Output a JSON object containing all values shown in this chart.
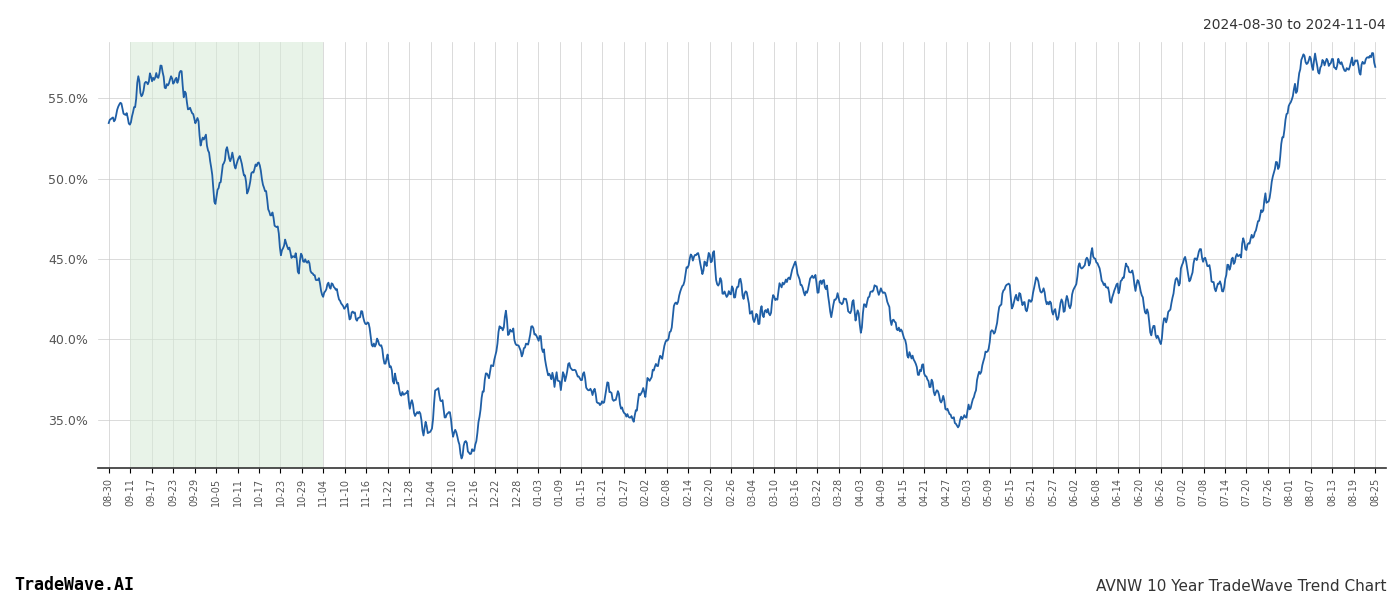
{
  "title_right": "2024-08-30 to 2024-11-04",
  "footer_left": "TradeWave.AI",
  "footer_right": "AVNW 10 Year TradeWave Trend Chart",
  "line_color": "#1f5fa6",
  "line_width": 1.3,
  "highlight_color": "#d6ead6",
  "highlight_alpha": 0.55,
  "highlight_xstart": 1,
  "highlight_xend": 10,
  "ylim": [
    32.0,
    58.5
  ],
  "yticks": [
    35.0,
    40.0,
    45.0,
    50.0,
    55.0
  ],
  "background_color": "#ffffff",
  "grid_color": "#cccccc",
  "x_labels": [
    "08-30",
    "09-11",
    "09-17",
    "09-23",
    "09-29",
    "10-05",
    "10-11",
    "10-17",
    "10-23",
    "10-29",
    "11-04",
    "11-10",
    "11-16",
    "11-22",
    "11-28",
    "12-04",
    "12-10",
    "12-16",
    "12-22",
    "12-28",
    "01-03",
    "01-09",
    "01-15",
    "01-21",
    "01-27",
    "02-02",
    "02-08",
    "02-14",
    "02-20",
    "02-26",
    "03-04",
    "03-10",
    "03-16",
    "03-22",
    "03-28",
    "04-03",
    "04-09",
    "04-15",
    "04-21",
    "04-27",
    "05-03",
    "05-09",
    "05-15",
    "05-21",
    "05-27",
    "06-02",
    "06-08",
    "06-14",
    "06-20",
    "06-26",
    "07-02",
    "07-08",
    "07-14",
    "07-20",
    "07-26",
    "08-01",
    "08-07",
    "08-13",
    "08-19",
    "08-25"
  ],
  "key_points": [
    [
      0,
      53.5
    ],
    [
      0.008,
      54.8
    ],
    [
      0.016,
      53.2
    ],
    [
      0.022,
      55.5
    ],
    [
      0.028,
      56.2
    ],
    [
      0.033,
      56.0
    ],
    [
      0.04,
      56.5
    ],
    [
      0.046,
      55.5
    ],
    [
      0.05,
      56.3
    ],
    [
      0.055,
      56.5
    ],
    [
      0.06,
      55.5
    ],
    [
      0.065,
      54.0
    ],
    [
      0.07,
      53.5
    ],
    [
      0.073,
      51.8
    ],
    [
      0.076,
      53.0
    ],
    [
      0.08,
      51.5
    ],
    [
      0.084,
      48.5
    ],
    [
      0.087,
      49.5
    ],
    [
      0.09,
      49.8
    ],
    [
      0.093,
      51.5
    ],
    [
      0.096,
      51.2
    ],
    [
      0.1,
      50.5
    ],
    [
      0.103,
      51.8
    ],
    [
      0.107,
      50.2
    ],
    [
      0.111,
      49.5
    ],
    [
      0.115,
      50.8
    ],
    [
      0.118,
      51.5
    ],
    [
      0.121,
      50.5
    ],
    [
      0.124,
      49.0
    ],
    [
      0.128,
      47.5
    ],
    [
      0.132,
      47.0
    ],
    [
      0.136,
      46.5
    ],
    [
      0.14,
      45.5
    ],
    [
      0.143,
      45.8
    ],
    [
      0.147,
      45.2
    ],
    [
      0.15,
      44.8
    ],
    [
      0.154,
      45.2
    ],
    [
      0.158,
      44.5
    ],
    [
      0.162,
      44.0
    ],
    [
      0.166,
      43.5
    ],
    [
      0.17,
      42.8
    ],
    [
      0.174,
      43.5
    ],
    [
      0.178,
      43.0
    ],
    [
      0.182,
      42.5
    ],
    [
      0.186,
      42.0
    ],
    [
      0.19,
      41.5
    ],
    [
      0.194,
      41.8
    ],
    [
      0.198,
      41.5
    ],
    [
      0.202,
      41.0
    ],
    [
      0.206,
      40.5
    ],
    [
      0.21,
      40.0
    ],
    [
      0.214,
      39.5
    ],
    [
      0.218,
      39.0
    ],
    [
      0.222,
      38.0
    ],
    [
      0.226,
      37.5
    ],
    [
      0.23,
      37.0
    ],
    [
      0.234,
      36.5
    ],
    [
      0.238,
      36.0
    ],
    [
      0.242,
      35.5
    ],
    [
      0.246,
      35.0
    ],
    [
      0.25,
      34.5
    ],
    [
      0.254,
      34.0
    ],
    [
      0.258,
      37.0
    ],
    [
      0.262,
      36.5
    ],
    [
      0.266,
      35.5
    ],
    [
      0.27,
      35.0
    ],
    [
      0.274,
      34.0
    ],
    [
      0.278,
      33.5
    ],
    [
      0.282,
      33.2
    ],
    [
      0.286,
      33.0
    ],
    [
      0.29,
      33.5
    ],
    [
      0.294,
      36.0
    ],
    [
      0.298,
      37.5
    ],
    [
      0.302,
      38.0
    ],
    [
      0.306,
      40.0
    ],
    [
      0.31,
      40.5
    ],
    [
      0.314,
      41.0
    ],
    [
      0.318,
      40.5
    ],
    [
      0.322,
      40.0
    ],
    [
      0.326,
      39.5
    ],
    [
      0.33,
      40.0
    ],
    [
      0.334,
      40.5
    ],
    [
      0.338,
      40.0
    ],
    [
      0.342,
      39.5
    ],
    [
      0.346,
      38.5
    ],
    [
      0.35,
      38.0
    ],
    [
      0.354,
      37.5
    ],
    [
      0.358,
      37.0
    ],
    [
      0.362,
      37.8
    ],
    [
      0.366,
      38.5
    ],
    [
      0.37,
      38.0
    ],
    [
      0.374,
      37.5
    ],
    [
      0.378,
      37.0
    ],
    [
      0.382,
      36.5
    ],
    [
      0.386,
      36.0
    ],
    [
      0.39,
      36.5
    ],
    [
      0.394,
      37.0
    ],
    [
      0.398,
      36.5
    ],
    [
      0.402,
      36.0
    ],
    [
      0.406,
      35.5
    ],
    [
      0.41,
      35.0
    ],
    [
      0.414,
      35.5
    ],
    [
      0.418,
      36.0
    ],
    [
      0.422,
      36.8
    ],
    [
      0.426,
      37.5
    ],
    [
      0.43,
      38.0
    ],
    [
      0.434,
      38.8
    ],
    [
      0.438,
      39.5
    ],
    [
      0.442,
      40.5
    ],
    [
      0.446,
      41.5
    ],
    [
      0.45,
      42.5
    ],
    [
      0.454,
      43.5
    ],
    [
      0.458,
      44.5
    ],
    [
      0.462,
      45.5
    ],
    [
      0.466,
      45.0
    ],
    [
      0.47,
      44.5
    ],
    [
      0.474,
      45.5
    ],
    [
      0.478,
      44.5
    ],
    [
      0.482,
      43.5
    ],
    [
      0.486,
      43.0
    ],
    [
      0.49,
      42.5
    ],
    [
      0.494,
      43.0
    ],
    [
      0.498,
      43.5
    ],
    [
      0.502,
      43.0
    ],
    [
      0.506,
      42.5
    ],
    [
      0.51,
      41.5
    ],
    [
      0.514,
      41.0
    ],
    [
      0.518,
      41.5
    ],
    [
      0.522,
      42.0
    ],
    [
      0.526,
      42.5
    ],
    [
      0.53,
      43.0
    ],
    [
      0.534,
      43.5
    ],
    [
      0.538,
      44.0
    ],
    [
      0.542,
      44.5
    ],
    [
      0.546,
      43.5
    ],
    [
      0.55,
      43.0
    ],
    [
      0.554,
      43.5
    ],
    [
      0.558,
      44.0
    ],
    [
      0.562,
      43.5
    ],
    [
      0.566,
      43.0
    ],
    [
      0.57,
      42.0
    ],
    [
      0.574,
      42.5
    ],
    [
      0.578,
      43.0
    ],
    [
      0.582,
      42.5
    ],
    [
      0.586,
      42.0
    ],
    [
      0.59,
      41.5
    ],
    [
      0.594,
      41.0
    ],
    [
      0.598,
      42.0
    ],
    [
      0.602,
      43.0
    ],
    [
      0.606,
      43.5
    ],
    [
      0.61,
      43.0
    ],
    [
      0.614,
      42.5
    ],
    [
      0.618,
      41.5
    ],
    [
      0.622,
      41.0
    ],
    [
      0.626,
      40.5
    ],
    [
      0.63,
      39.5
    ],
    [
      0.634,
      39.0
    ],
    [
      0.638,
      38.5
    ],
    [
      0.642,
      38.0
    ],
    [
      0.646,
      37.5
    ],
    [
      0.65,
      37.0
    ],
    [
      0.654,
      36.5
    ],
    [
      0.658,
      36.0
    ],
    [
      0.662,
      35.5
    ],
    [
      0.666,
      35.0
    ],
    [
      0.67,
      34.5
    ],
    [
      0.674,
      35.0
    ],
    [
      0.678,
      35.5
    ],
    [
      0.682,
      36.5
    ],
    [
      0.686,
      37.5
    ],
    [
      0.69,
      38.5
    ],
    [
      0.694,
      39.5
    ],
    [
      0.698,
      40.5
    ],
    [
      0.702,
      41.5
    ],
    [
      0.706,
      42.5
    ],
    [
      0.71,
      43.5
    ],
    [
      0.714,
      43.0
    ],
    [
      0.718,
      42.5
    ],
    [
      0.722,
      42.0
    ],
    [
      0.726,
      42.5
    ],
    [
      0.73,
      43.0
    ],
    [
      0.734,
      43.5
    ],
    [
      0.738,
      43.0
    ],
    [
      0.742,
      42.5
    ],
    [
      0.746,
      42.0
    ],
    [
      0.75,
      41.5
    ],
    [
      0.754,
      42.0
    ],
    [
      0.758,
      42.5
    ],
    [
      0.762,
      43.0
    ],
    [
      0.766,
      44.0
    ],
    [
      0.77,
      44.5
    ],
    [
      0.774,
      45.0
    ],
    [
      0.778,
      45.5
    ],
    [
      0.782,
      44.5
    ],
    [
      0.786,
      43.5
    ],
    [
      0.79,
      42.5
    ],
    [
      0.794,
      43.0
    ],
    [
      0.798,
      43.5
    ],
    [
      0.802,
      44.0
    ],
    [
      0.806,
      44.5
    ],
    [
      0.81,
      43.5
    ],
    [
      0.814,
      43.0
    ],
    [
      0.818,
      41.5
    ],
    [
      0.822,
      41.0
    ],
    [
      0.826,
      40.5
    ],
    [
      0.83,
      40.0
    ],
    [
      0.834,
      41.0
    ],
    [
      0.838,
      42.0
    ],
    [
      0.842,
      43.0
    ],
    [
      0.846,
      44.0
    ],
    [
      0.85,
      44.5
    ],
    [
      0.854,
      44.0
    ],
    [
      0.858,
      45.0
    ],
    [
      0.862,
      45.5
    ],
    [
      0.866,
      44.5
    ],
    [
      0.87,
      44.0
    ],
    [
      0.874,
      43.0
    ],
    [
      0.878,
      43.5
    ],
    [
      0.882,
      44.0
    ],
    [
      0.886,
      44.5
    ],
    [
      0.89,
      45.0
    ],
    [
      0.894,
      45.5
    ],
    [
      0.898,
      46.0
    ],
    [
      0.902,
      46.5
    ],
    [
      0.906,
      47.0
    ],
    [
      0.91,
      47.5
    ],
    [
      0.914,
      48.5
    ],
    [
      0.918,
      49.5
    ],
    [
      0.922,
      50.5
    ],
    [
      0.926,
      52.0
    ],
    [
      0.93,
      53.5
    ],
    [
      0.934,
      55.0
    ],
    [
      0.938,
      56.0
    ],
    [
      0.942,
      57.0
    ],
    [
      0.946,
      57.2
    ]
  ]
}
